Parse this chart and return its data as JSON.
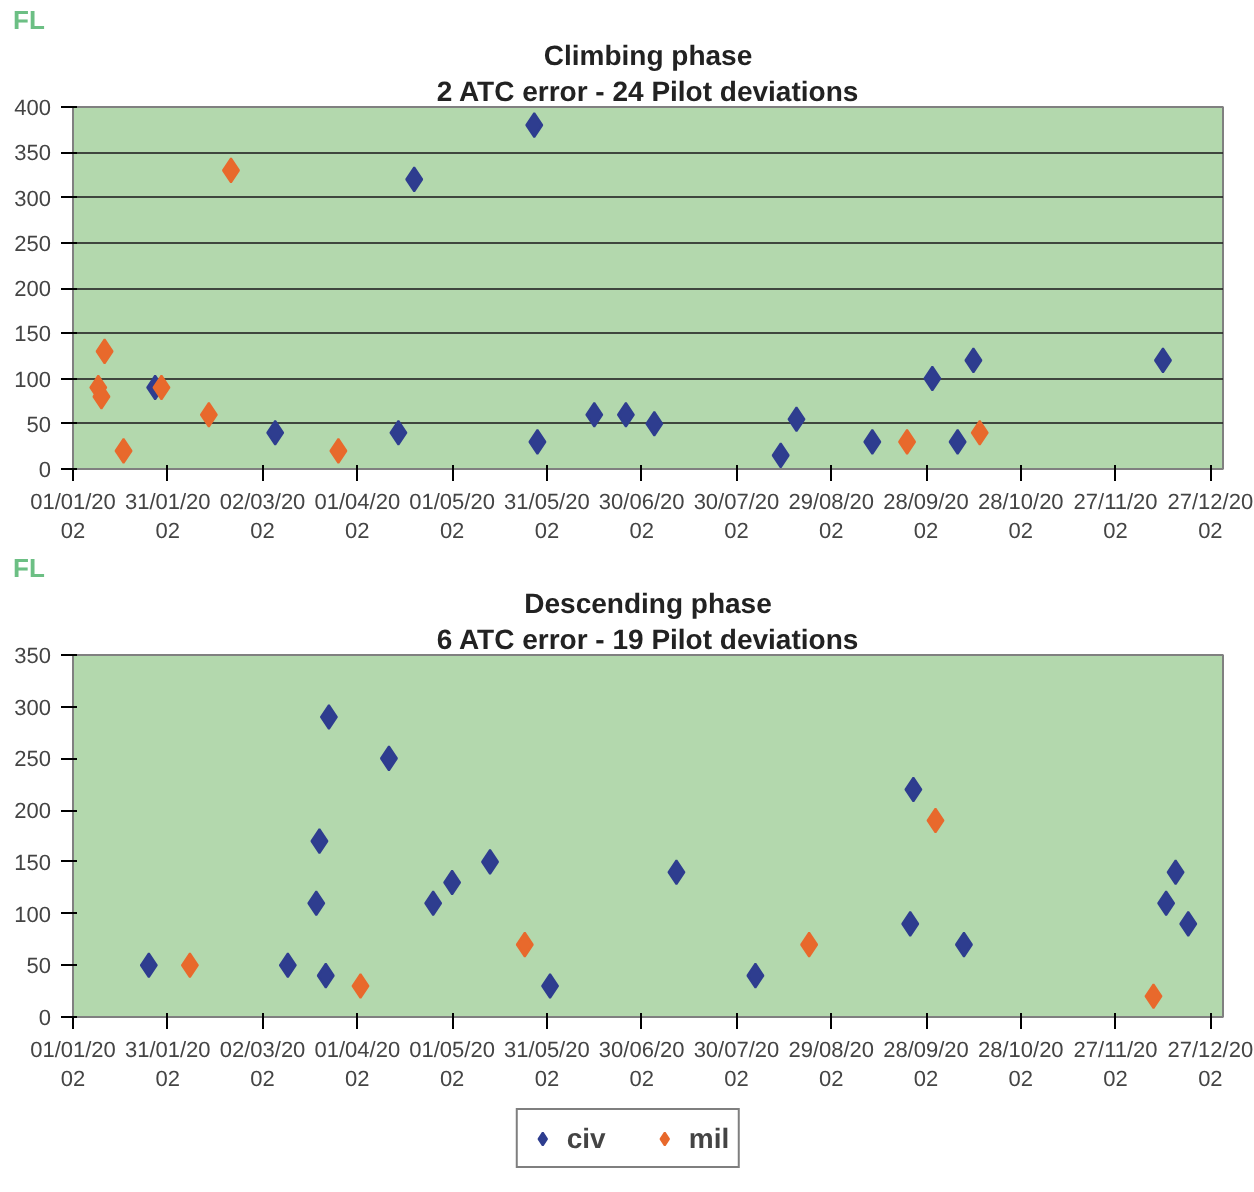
{
  "chart_data": [
    {
      "type": "scatter",
      "title": "Climbing phase",
      "subtitle": "2 ATC error - 24 Pilot deviations",
      "ylabel": "FL",
      "marker": "diamond",
      "grid": "y",
      "legend": false,
      "xlim": [
        "2002-01-01",
        "2002-12-31"
      ],
      "xticks": [
        {
          "value": "2002-01-01",
          "label": "01/01/2002"
        },
        {
          "value": "2002-01-31",
          "label": "31/01/2002"
        },
        {
          "value": "2002-03-02",
          "label": "02/03/2002"
        },
        {
          "value": "2002-04-01",
          "label": "01/04/2002"
        },
        {
          "value": "2002-05-01",
          "label": "01/05/2002"
        },
        {
          "value": "2002-05-31",
          "label": "31/05/2002"
        },
        {
          "value": "2002-06-30",
          "label": "30/06/2002"
        },
        {
          "value": "2002-07-30",
          "label": "30/07/2002"
        },
        {
          "value": "2002-08-29",
          "label": "29/08/2002"
        },
        {
          "value": "2002-09-28",
          "label": "28/09/2002"
        },
        {
          "value": "2002-10-28",
          "label": "28/10/2002"
        },
        {
          "value": "2002-11-27",
          "label": "27/11/2002"
        },
        {
          "value": "2002-12-27",
          "label": "27/12/2002"
        }
      ],
      "ylim": [
        0,
        400
      ],
      "yticks": [
        0,
        50,
        100,
        150,
        200,
        250,
        300,
        350,
        400
      ],
      "series": [
        {
          "color": "#2e3d8f",
          "x": [
            "2002-01-27",
            "2002-03-06",
            "2002-04-14",
            "2002-04-19",
            "2002-05-27",
            "2002-05-28",
            "2002-06-15",
            "2002-06-25",
            "2002-07-04",
            "2002-08-13",
            "2002-08-18",
            "2002-09-11",
            "2002-09-30",
            "2002-10-08",
            "2002-10-13",
            "2002-12-12"
          ],
          "values": [
            90,
            40,
            40,
            320,
            380,
            30,
            60,
            60,
            50,
            15,
            55,
            30,
            100,
            30,
            120,
            120
          ]
        },
        {
          "color": "#e8692c",
          "x": [
            "2002-01-09",
            "2002-01-11",
            "2002-01-10",
            "2002-01-17",
            "2002-01-29",
            "2002-02-13",
            "2002-02-20",
            "2002-03-26",
            "2002-09-22",
            "2002-10-15"
          ],
          "values": [
            90,
            130,
            80,
            20,
            90,
            60,
            330,
            20,
            30,
            40
          ]
        }
      ]
    },
    {
      "type": "scatter",
      "title": "Descending phase",
      "subtitle": "6 ATC error - 19 Pilot deviations",
      "ylabel": "FL",
      "marker": "diamond",
      "grid": false,
      "legend": "bottom",
      "xlim": [
        "2002-01-01",
        "2002-12-31"
      ],
      "xticks": [
        {
          "value": "2002-01-01",
          "label": "01/01/2002"
        },
        {
          "value": "2002-01-31",
          "label": "31/01/2002"
        },
        {
          "value": "2002-03-02",
          "label": "02/03/2002"
        },
        {
          "value": "2002-04-01",
          "label": "01/04/2002"
        },
        {
          "value": "2002-05-01",
          "label": "01/05/2002"
        },
        {
          "value": "2002-05-31",
          "label": "31/05/2002"
        },
        {
          "value": "2002-06-30",
          "label": "30/06/2002"
        },
        {
          "value": "2002-07-30",
          "label": "30/07/2002"
        },
        {
          "value": "2002-08-29",
          "label": "29/08/2002"
        },
        {
          "value": "2002-09-28",
          "label": "28/09/2002"
        },
        {
          "value": "2002-10-28",
          "label": "28/10/2002"
        },
        {
          "value": "2002-11-27",
          "label": "27/11/2002"
        },
        {
          "value": "2002-12-27",
          "label": "27/12/2002"
        }
      ],
      "ylim": [
        0,
        350
      ],
      "yticks": [
        0,
        50,
        100,
        150,
        200,
        250,
        300,
        350
      ],
      "series": [
        {
          "name": "civ",
          "color": "#2e3d8f",
          "x": [
            "2002-01-25",
            "2002-03-10",
            "2002-03-19",
            "2002-03-20",
            "2002-03-23",
            "2002-03-22",
            "2002-04-11",
            "2002-04-25",
            "2002-05-01",
            "2002-05-13",
            "2002-06-01",
            "2002-07-11",
            "2002-08-05",
            "2002-09-23",
            "2002-09-24",
            "2002-10-10",
            "2002-12-13",
            "2002-12-16",
            "2002-12-20"
          ],
          "values": [
            50,
            50,
            110,
            170,
            290,
            40,
            250,
            110,
            130,
            150,
            30,
            140,
            40,
            90,
            220,
            70,
            110,
            140,
            90
          ]
        },
        {
          "name": "mil",
          "color": "#e8692c",
          "x": [
            "2002-02-07",
            "2002-04-02",
            "2002-05-24",
            "2002-08-22",
            "2002-10-01",
            "2002-12-09"
          ],
          "values": [
            50,
            30,
            70,
            70,
            190,
            20
          ]
        }
      ]
    }
  ]
}
